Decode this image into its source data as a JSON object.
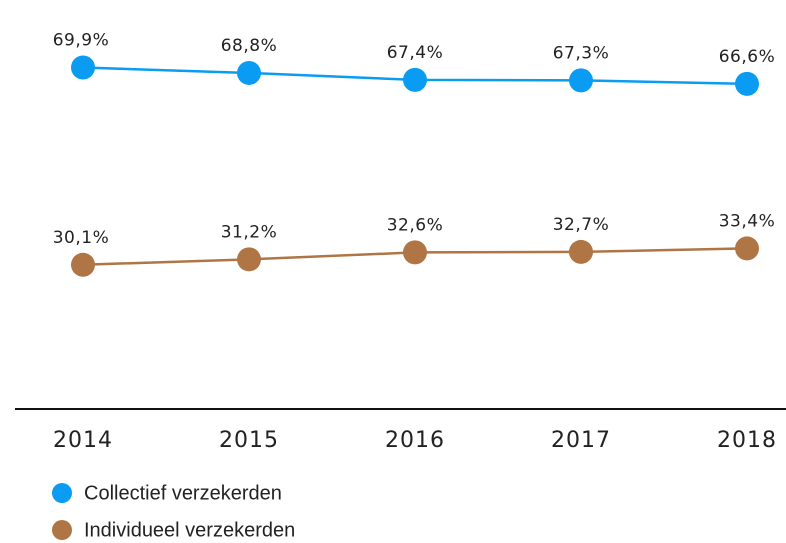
{
  "chart_data": {
    "type": "line",
    "categories": [
      "2014",
      "2015",
      "2016",
      "2017",
      "2018"
    ],
    "series": [
      {
        "name": "Collectief verzekerden",
        "color": "#0a9cf3",
        "values": [
          69.9,
          68.8,
          67.4,
          67.3,
          66.6
        ],
        "value_labels": [
          "69,9%",
          "68,8%",
          "67,4%",
          "67,3%",
          "66,6%"
        ]
      },
      {
        "name": "Individueel verzekerden",
        "color": "#b07545",
        "values": [
          30.1,
          31.2,
          32.6,
          32.7,
          33.4
        ],
        "value_labels": [
          "30,1%",
          "31,2%",
          "32,6%",
          "32,7%",
          "33,4%"
        ]
      }
    ],
    "ylim": [
      0,
      70
    ],
    "grid": false
  }
}
